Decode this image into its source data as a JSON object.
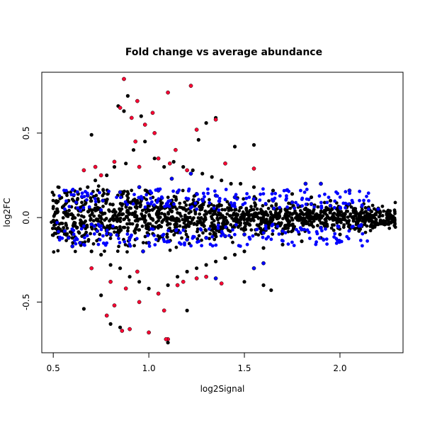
{
  "chart_data": {
    "type": "scatter",
    "title": "Fold change vs average abundance",
    "xlabel": "log2Signal",
    "ylabel": "log2FC",
    "xlim": [
      0.44,
      2.33
    ],
    "ylim": [
      -0.8,
      0.86
    ],
    "x_ticks": [
      0.5,
      1.0,
      1.5,
      2.0
    ],
    "x_tick_labels": [
      "0.5",
      "1.0",
      "1.5",
      "2.0"
    ],
    "y_ticks": [
      -0.5,
      0.0,
      0.5
    ],
    "y_tick_labels": [
      "-0.5",
      "0.0",
      "0.5"
    ],
    "grid": false,
    "legend": "none",
    "series": [
      {
        "color": "#000000",
        "points": [
          [
            0.5,
            -0.02
          ],
          [
            0.52,
            0.05
          ],
          [
            0.55,
            -0.08
          ],
          [
            0.58,
            0.1
          ],
          [
            0.6,
            -0.12
          ],
          [
            0.63,
            0.14
          ],
          [
            0.65,
            -0.15
          ],
          [
            0.68,
            0.18
          ],
          [
            0.7,
            -0.2
          ],
          [
            0.72,
            0.22
          ],
          [
            0.75,
            -0.22
          ],
          [
            0.78,
            0.25
          ],
          [
            0.8,
            -0.28
          ],
          [
            0.82,
            0.3
          ],
          [
            0.85,
            -0.3
          ],
          [
            0.88,
            0.32
          ],
          [
            0.9,
            -0.35
          ],
          [
            0.92,
            0.4
          ],
          [
            0.95,
            -0.38
          ],
          [
            0.98,
            0.45
          ],
          [
            1.0,
            -0.42
          ],
          [
            1.03,
            0.35
          ],
          [
            1.05,
            -0.45
          ],
          [
            1.08,
            0.3
          ],
          [
            1.1,
            -0.4
          ],
          [
            1.13,
            0.33
          ],
          [
            1.15,
            -0.35
          ],
          [
            1.18,
            0.3
          ],
          [
            1.2,
            -0.32
          ],
          [
            1.23,
            0.28
          ],
          [
            1.25,
            -0.3
          ],
          [
            1.28,
            0.26
          ],
          [
            1.3,
            -0.28
          ],
          [
            1.33,
            0.24
          ],
          [
            1.35,
            -0.26
          ],
          [
            1.38,
            0.22
          ],
          [
            1.4,
            -0.24
          ],
          [
            1.43,
            0.2
          ],
          [
            1.45,
            -0.22
          ],
          [
            1.48,
            0.2
          ],
          [
            1.5,
            -0.2
          ],
          [
            1.55,
            0.18
          ],
          [
            1.6,
            -0.18
          ],
          [
            1.65,
            0.16
          ],
          [
            1.7,
            -0.16
          ],
          [
            1.75,
            0.14
          ],
          [
            1.8,
            -0.14
          ],
          [
            1.85,
            0.12
          ],
          [
            1.9,
            -0.12
          ],
          [
            1.95,
            0.1
          ],
          [
            2.0,
            -0.1
          ],
          [
            2.05,
            0.08
          ],
          [
            2.1,
            -0.08
          ],
          [
            2.15,
            0.06
          ],
          [
            2.2,
            -0.04
          ],
          [
            2.25,
            0.02
          ],
          [
            2.28,
            -0.01
          ],
          [
            0.84,
            0.66
          ],
          [
            0.89,
            0.72
          ],
          [
            0.87,
            0.63
          ],
          [
            0.96,
            0.6
          ],
          [
            1.3,
            0.56
          ],
          [
            1.35,
            0.59
          ],
          [
            1.26,
            0.46
          ],
          [
            1.45,
            0.42
          ],
          [
            1.55,
            0.43
          ],
          [
            0.7,
            0.49
          ],
          [
            0.8,
            -0.63
          ],
          [
            0.85,
            -0.65
          ],
          [
            1.1,
            -0.74
          ],
          [
            1.0,
            -0.68
          ],
          [
            0.66,
            -0.54
          ],
          [
            1.5,
            -0.38
          ],
          [
            1.6,
            -0.4
          ],
          [
            1.64,
            -0.43
          ],
          [
            0.75,
            -0.46
          ],
          [
            1.2,
            -0.55
          ]
        ]
      },
      {
        "color": "#0000ff",
        "points": [
          [
            0.52,
            -0.03
          ],
          [
            0.56,
            -0.08
          ],
          [
            0.58,
            -0.12
          ],
          [
            0.6,
            -0.17
          ],
          [
            0.62,
            0.09
          ],
          [
            0.64,
            -0.15
          ],
          [
            0.66,
            -0.05
          ],
          [
            0.68,
            0.13
          ],
          [
            0.7,
            -0.04
          ],
          [
            0.73,
            -0.08
          ],
          [
            0.76,
            0.1
          ],
          [
            0.8,
            -0.1
          ],
          [
            0.85,
            0.15
          ],
          [
            0.9,
            -0.12
          ],
          [
            0.95,
            0.18
          ],
          [
            1.0,
            -0.15
          ],
          [
            1.05,
            0.16
          ],
          [
            1.1,
            -0.14
          ],
          [
            1.15,
            0.15
          ],
          [
            1.2,
            -0.13
          ],
          [
            1.25,
            0.14
          ],
          [
            1.3,
            -0.12
          ],
          [
            1.35,
            0.13
          ],
          [
            1.4,
            -0.11
          ],
          [
            1.45,
            0.12
          ],
          [
            1.5,
            -0.1
          ],
          [
            1.55,
            0.11
          ],
          [
            1.6,
            -0.09
          ],
          [
            1.65,
            0.1
          ],
          [
            1.7,
            -0.08
          ],
          [
            1.75,
            0.09
          ],
          [
            1.8,
            -0.07
          ],
          [
            1.85,
            0.08
          ],
          [
            1.9,
            -0.06
          ],
          [
            1.95,
            0.07
          ],
          [
            2.0,
            0.06
          ],
          [
            2.05,
            0.16
          ],
          [
            2.1,
            -0.05
          ],
          [
            2.15,
            0.05
          ],
          [
            2.2,
            0.05
          ],
          [
            1.35,
            -0.36
          ],
          [
            1.55,
            -0.3
          ],
          [
            1.6,
            -0.27
          ],
          [
            1.82,
            0.2
          ],
          [
            1.9,
            0.2
          ],
          [
            1.22,
            0.26
          ],
          [
            1.12,
            0.23
          ],
          [
            0.97,
            -0.2
          ]
        ]
      },
      {
        "color": "#ff0033",
        "points": [
          [
            0.87,
            0.82
          ],
          [
            1.22,
            0.78
          ],
          [
            1.1,
            0.74
          ],
          [
            0.94,
            0.69
          ],
          [
            0.85,
            0.65
          ],
          [
            1.02,
            0.62
          ],
          [
            0.91,
            0.59
          ],
          [
            1.35,
            0.58
          ],
          [
            0.98,
            0.55
          ],
          [
            1.03,
            0.5
          ],
          [
            0.93,
            0.45
          ],
          [
            1.25,
            0.52
          ],
          [
            1.14,
            0.4
          ],
          [
            1.05,
            0.35
          ],
          [
            0.95,
            0.3
          ],
          [
            1.2,
            0.28
          ],
          [
            0.82,
            0.33
          ],
          [
            0.72,
            0.3
          ],
          [
            0.66,
            0.28
          ],
          [
            1.4,
            0.32
          ],
          [
            1.55,
            0.29
          ],
          [
            0.75,
            0.25
          ],
          [
            1.11,
            0.32
          ],
          [
            0.9,
            -0.66
          ],
          [
            0.86,
            -0.67
          ],
          [
            1.0,
            -0.68
          ],
          [
            0.78,
            -0.58
          ],
          [
            1.08,
            -0.55
          ],
          [
            0.82,
            -0.52
          ],
          [
            0.95,
            -0.5
          ],
          [
            1.05,
            -0.45
          ],
          [
            0.88,
            -0.42
          ],
          [
            1.15,
            -0.4
          ],
          [
            0.8,
            -0.38
          ],
          [
            1.25,
            -0.36
          ],
          [
            0.94,
            -0.32
          ],
          [
            1.3,
            -0.35
          ],
          [
            0.7,
            -0.3
          ],
          [
            1.38,
            -0.39
          ],
          [
            1.18,
            -0.38
          ],
          [
            1.1,
            -0.72
          ],
          [
            1.09,
            -0.72
          ]
        ]
      }
    ]
  }
}
